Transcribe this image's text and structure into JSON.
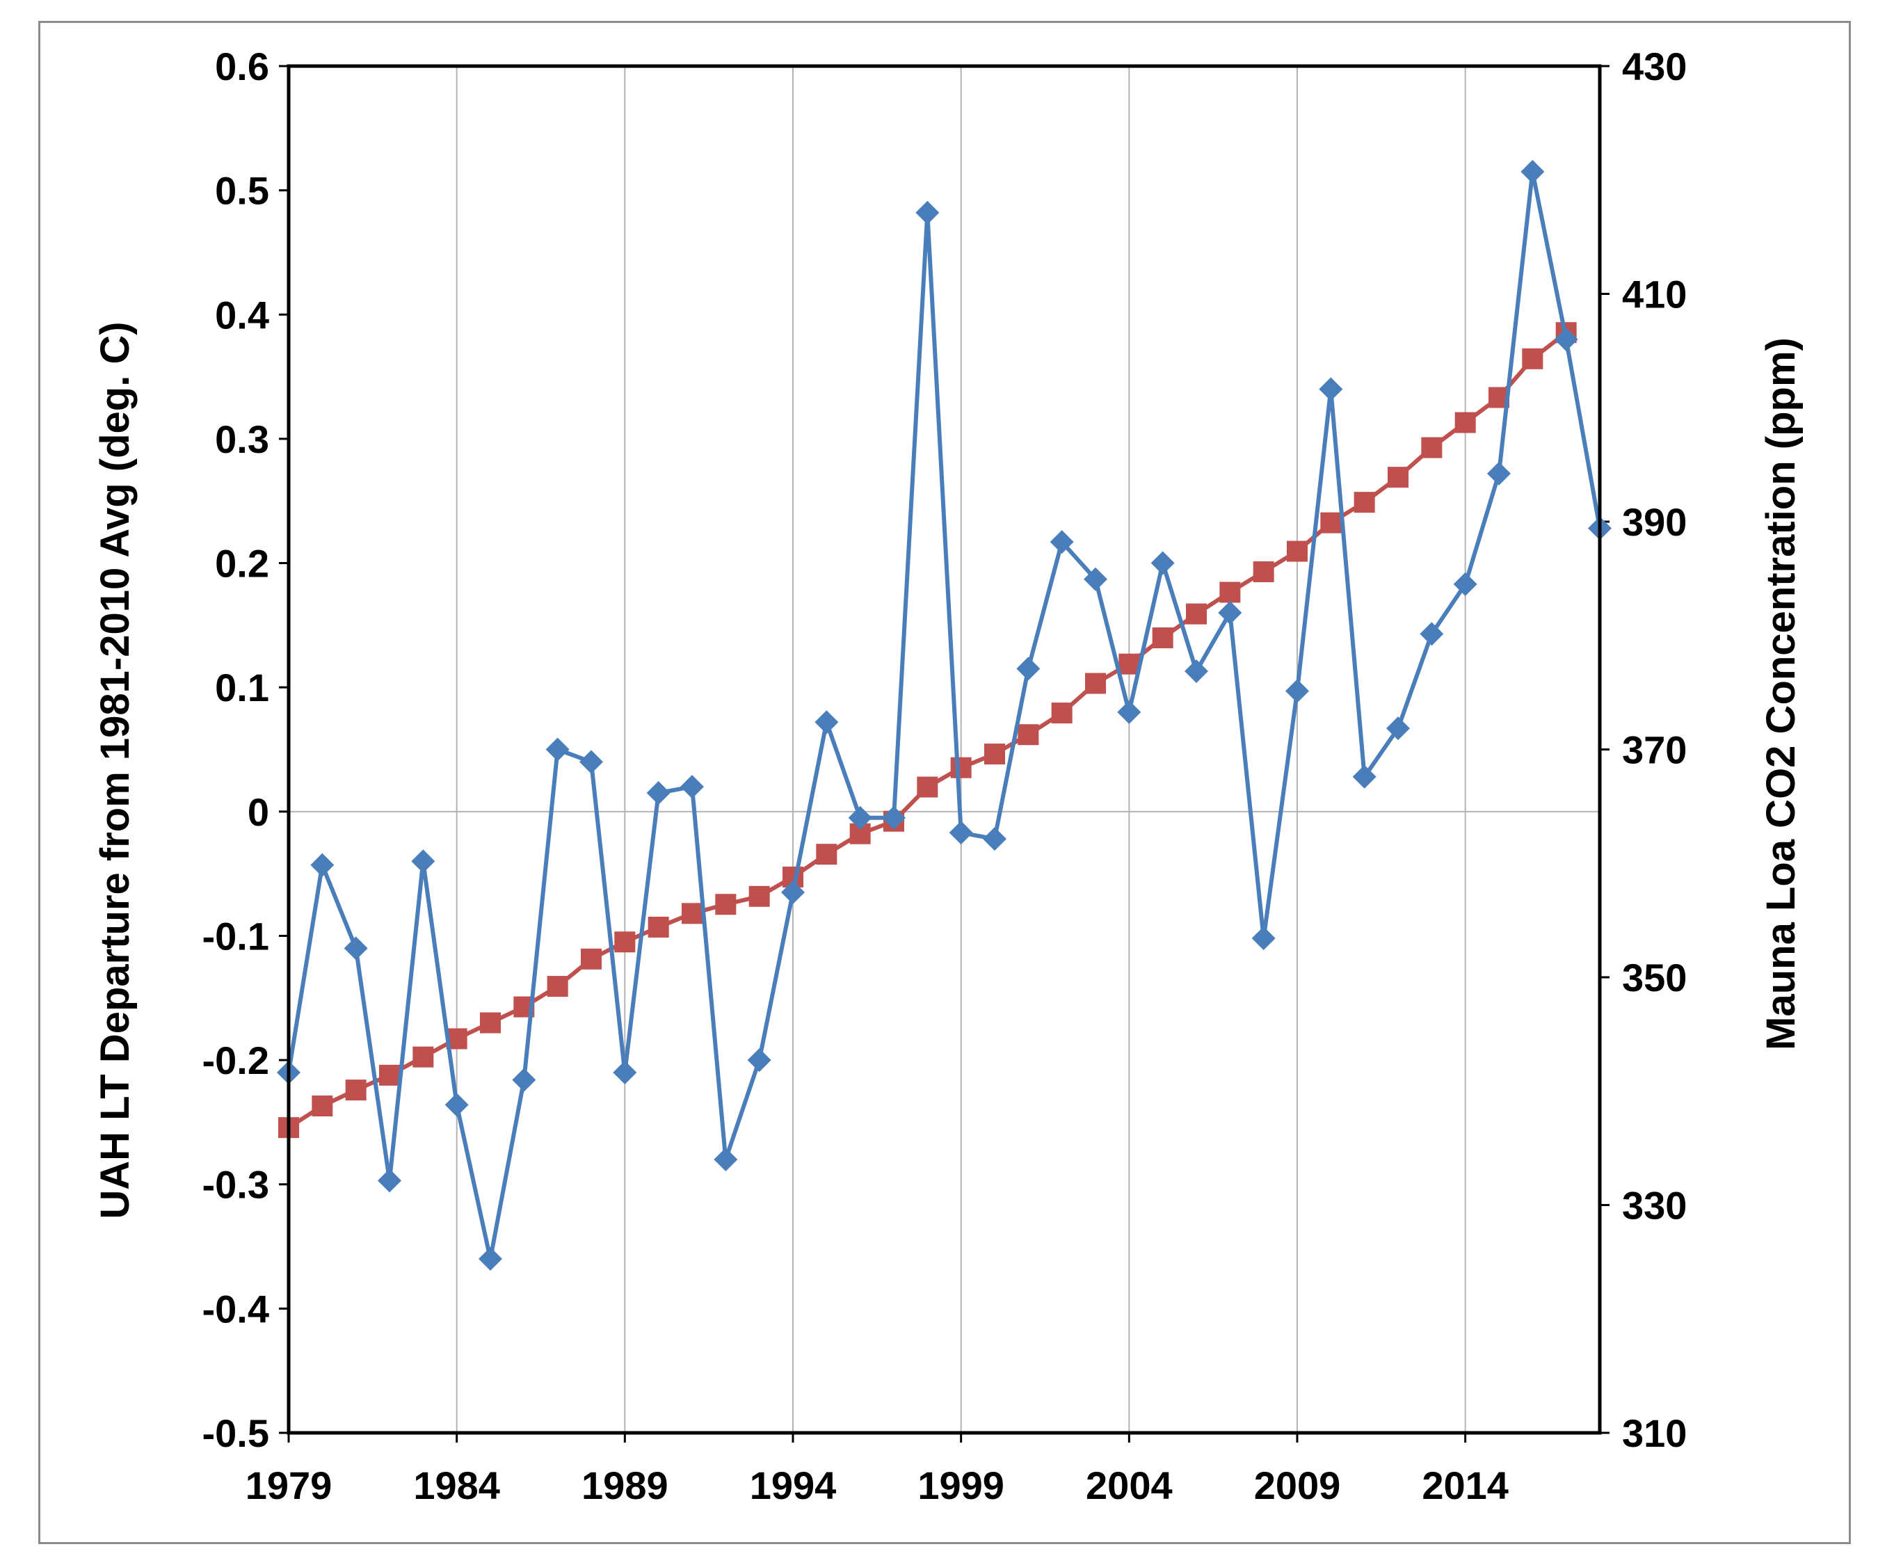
{
  "chart_data": {
    "type": "line",
    "title": "",
    "xlabel": "",
    "ylabel": "UAH LT Departure from 1981-2010 Avg (deg. C)",
    "y2label": "Mauna Loa CO2 Concentration (ppm)",
    "xlim": [
      1979,
      2018
    ],
    "ylim": [
      -0.5,
      0.6
    ],
    "y2lim": [
      310,
      430
    ],
    "x_ticks": [
      "1979",
      "1984",
      "1989",
      "1994",
      "1999",
      "2004",
      "2009",
      "2014"
    ],
    "y_ticks": [
      "0.6",
      "0.5",
      "0.4",
      "0.3",
      "0.2",
      "0.1",
      "0",
      "-0.1",
      "-0.2",
      "-0.3",
      "-0.4",
      "-0.5"
    ],
    "y2_ticks": [
      "430",
      "410",
      "390",
      "370",
      "350",
      "330",
      "310"
    ],
    "grid": true,
    "legend": "none",
    "series": [
      {
        "axis": "left",
        "color": "#4a7ebb",
        "marker": "diamond",
        "x": [
          1979,
          1980,
          1981,
          1982,
          1983,
          1984,
          1985,
          1986,
          1987,
          1988,
          1989,
          1990,
          1991,
          1992,
          1993,
          1994,
          1995,
          1996,
          1997,
          1998,
          1999,
          2000,
          2001,
          2002,
          2003,
          2004,
          2005,
          2006,
          2007,
          2008,
          2009,
          2010,
          2011,
          2012,
          2013,
          2014,
          2015,
          2016,
          2017,
          2018
        ],
        "values": [
          -0.21,
          -0.043,
          -0.11,
          -0.297,
          -0.04,
          -0.236,
          -0.36,
          -0.216,
          0.05,
          0.04,
          -0.21,
          0.015,
          0.02,
          -0.28,
          -0.2,
          -0.065,
          0.072,
          -0.005,
          -0.005,
          0.482,
          -0.017,
          -0.022,
          0.115,
          0.217,
          0.187,
          0.08,
          0.2,
          0.113,
          0.16,
          -0.102,
          0.097,
          0.34,
          0.028,
          0.067,
          0.143,
          0.183,
          0.272,
          0.515,
          0.38,
          0.228
        ]
      },
      {
        "axis": "right",
        "color": "#c0504d",
        "marker": "square",
        "x": [
          1979,
          1980,
          1981,
          1982,
          1983,
          1984,
          1985,
          1986,
          1987,
          1988,
          1989,
          1990,
          1991,
          1992,
          1993,
          1994,
          1995,
          1996,
          1997,
          1998,
          1999,
          2000,
          2001,
          2002,
          2003,
          2004,
          2005,
          2006,
          2007,
          2008,
          2009,
          2010,
          2011,
          2012,
          2013,
          2014,
          2015,
          2016,
          2017
        ],
        "values": [
          336.8,
          338.7,
          340.1,
          341.4,
          343.0,
          344.6,
          346.0,
          347.4,
          349.2,
          351.6,
          353.1,
          354.4,
          355.6,
          356.4,
          357.1,
          358.8,
          360.8,
          362.6,
          363.7,
          366.7,
          368.4,
          369.6,
          371.3,
          373.2,
          375.8,
          377.5,
          379.8,
          381.9,
          383.8,
          385.6,
          387.4,
          389.9,
          391.7,
          393.9,
          396.5,
          398.7,
          400.9,
          404.3,
          406.6
        ]
      }
    ]
  }
}
